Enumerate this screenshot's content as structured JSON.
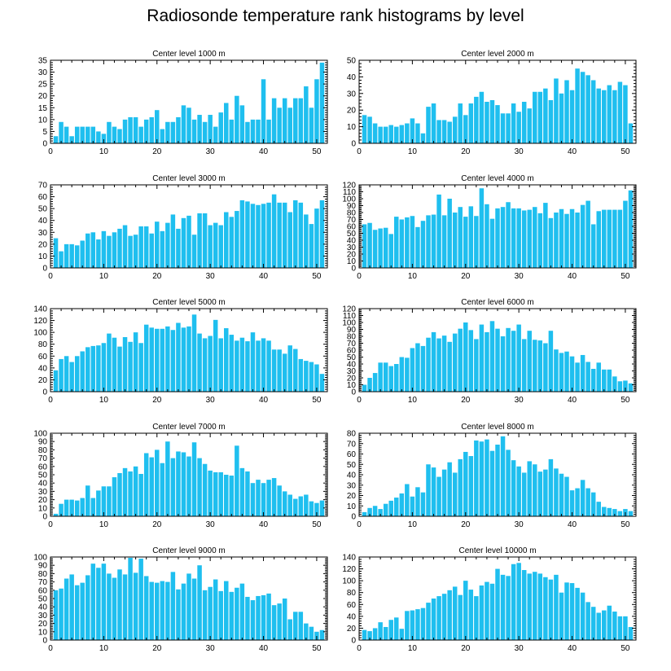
{
  "title": "Radiosonde temperature rank histograms by level",
  "bar_color": "#1fbfef",
  "chart_data": [
    {
      "type": "bar",
      "title": "Center level 1000 m",
      "x": [
        1,
        2,
        3,
        4,
        5,
        6,
        7,
        8,
        9,
        10,
        11,
        12,
        13,
        14,
        15,
        16,
        17,
        18,
        19,
        20,
        21,
        22,
        23,
        24,
        25,
        26,
        27,
        28,
        29,
        30,
        31,
        32,
        33,
        34,
        35,
        36,
        37,
        38,
        39,
        40,
        41,
        42,
        43,
        44,
        45,
        46,
        47,
        48,
        49,
        50,
        51
      ],
      "values": [
        3,
        9,
        7,
        3,
        7,
        7,
        7,
        7,
        5,
        4,
        9,
        7,
        6,
        10,
        11,
        11,
        7,
        10,
        11,
        14,
        6,
        9,
        9,
        11,
        16,
        15,
        10,
        12,
        9,
        12,
        7,
        13,
        17,
        10,
        20,
        16,
        9,
        10,
        10,
        27,
        10,
        19,
        15,
        19,
        15,
        19,
        19,
        24,
        15,
        27,
        34
      ],
      "xlim": [
        0,
        52
      ],
      "ylim": [
        0,
        35
      ],
      "xticks": [
        0,
        10,
        20,
        30,
        40,
        50
      ],
      "yticks": [
        0,
        5,
        10,
        15,
        20,
        25,
        30,
        35
      ]
    },
    {
      "type": "bar",
      "title": "Center level 2000 m",
      "x": [
        1,
        2,
        3,
        4,
        5,
        6,
        7,
        8,
        9,
        10,
        11,
        12,
        13,
        14,
        15,
        16,
        17,
        18,
        19,
        20,
        21,
        22,
        23,
        24,
        25,
        26,
        27,
        28,
        29,
        30,
        31,
        32,
        33,
        34,
        35,
        36,
        37,
        38,
        39,
        40,
        41,
        42,
        43,
        44,
        45,
        46,
        47,
        48,
        49,
        50,
        51
      ],
      "values": [
        17,
        16,
        12,
        10,
        10,
        11,
        10,
        11,
        12,
        15,
        12,
        6,
        22,
        24,
        14,
        14,
        13,
        16,
        24,
        17,
        24,
        28,
        31,
        25,
        26,
        23,
        18,
        18,
        24,
        19,
        25,
        21,
        31,
        31,
        33,
        26,
        39,
        30,
        38,
        32,
        45,
        43,
        41,
        38,
        33,
        32,
        35,
        32,
        37,
        35,
        12
      ],
      "xlim": [
        0,
        52
      ],
      "ylim": [
        0,
        50
      ],
      "xticks": [
        0,
        10,
        20,
        30,
        40,
        50
      ],
      "yticks": [
        0,
        10,
        20,
        30,
        40,
        50
      ]
    },
    {
      "type": "bar",
      "title": "Center level 3000 m",
      "x": [
        1,
        2,
        3,
        4,
        5,
        6,
        7,
        8,
        9,
        10,
        11,
        12,
        13,
        14,
        15,
        16,
        17,
        18,
        19,
        20,
        21,
        22,
        23,
        24,
        25,
        26,
        27,
        28,
        29,
        30,
        31,
        32,
        33,
        34,
        35,
        36,
        37,
        38,
        39,
        40,
        41,
        42,
        43,
        44,
        45,
        46,
        47,
        48,
        49,
        50,
        51
      ],
      "values": [
        25,
        14,
        20,
        20,
        19,
        23,
        29,
        30,
        24,
        31,
        27,
        30,
        33,
        36,
        27,
        28,
        35,
        35,
        29,
        39,
        31,
        38,
        45,
        33,
        42,
        44,
        28,
        46,
        46,
        36,
        38,
        36,
        47,
        43,
        48,
        57,
        56,
        54,
        53,
        54,
        55,
        62,
        55,
        55,
        47,
        57,
        55,
        45,
        37,
        50,
        57
      ],
      "xlim": [
        0,
        52
      ],
      "ylim": [
        0,
        70
      ],
      "xticks": [
        0,
        10,
        20,
        30,
        40,
        50
      ],
      "yticks": [
        0,
        10,
        20,
        30,
        40,
        50,
        60,
        70
      ]
    },
    {
      "type": "bar",
      "title": "Center level 4000 m",
      "x": [
        1,
        2,
        3,
        4,
        5,
        6,
        7,
        8,
        9,
        10,
        11,
        12,
        13,
        14,
        15,
        16,
        17,
        18,
        19,
        20,
        21,
        22,
        23,
        24,
        25,
        26,
        27,
        28,
        29,
        30,
        31,
        32,
        33,
        34,
        35,
        36,
        37,
        38,
        39,
        40,
        41,
        42,
        43,
        44,
        45,
        46,
        47,
        48,
        49,
        50,
        51
      ],
      "values": [
        63,
        65,
        55,
        57,
        58,
        49,
        74,
        70,
        73,
        75,
        59,
        68,
        76,
        77,
        106,
        76,
        100,
        80,
        88,
        74,
        89,
        75,
        115,
        92,
        71,
        86,
        88,
        95,
        86,
        86,
        83,
        84,
        88,
        79,
        94,
        72,
        80,
        85,
        78,
        85,
        80,
        91,
        97,
        63,
        82,
        84,
        84,
        84,
        84,
        97,
        112
      ],
      "xlim": [
        0,
        52
      ],
      "ylim": [
        0,
        120
      ],
      "xticks": [
        0,
        10,
        20,
        30,
        40,
        50
      ],
      "yticks": [
        0,
        10,
        20,
        30,
        40,
        50,
        60,
        70,
        80,
        90,
        100,
        110,
        120
      ]
    },
    {
      "type": "bar",
      "title": "Center level 5000 m",
      "x": [
        1,
        2,
        3,
        4,
        5,
        6,
        7,
        8,
        9,
        10,
        11,
        12,
        13,
        14,
        15,
        16,
        17,
        18,
        19,
        20,
        21,
        22,
        23,
        24,
        25,
        26,
        27,
        28,
        29,
        30,
        31,
        32,
        33,
        34,
        35,
        36,
        37,
        38,
        39,
        40,
        41,
        42,
        43,
        44,
        45,
        46,
        47,
        48,
        49,
        50,
        51
      ],
      "values": [
        36,
        55,
        60,
        50,
        60,
        68,
        75,
        77,
        78,
        82,
        98,
        91,
        76,
        92,
        84,
        100,
        82,
        113,
        108,
        106,
        106,
        110,
        104,
        116,
        108,
        110,
        130,
        98,
        90,
        94,
        121,
        90,
        107,
        96,
        86,
        91,
        85,
        100,
        86,
        90,
        86,
        71,
        71,
        64,
        78,
        72,
        55,
        52,
        50,
        46,
        30
      ],
      "xlim": [
        0,
        52
      ],
      "ylim": [
        0,
        140
      ],
      "xticks": [
        0,
        10,
        20,
        30,
        40,
        50
      ],
      "yticks": [
        0,
        20,
        40,
        60,
        80,
        100,
        120,
        140
      ]
    },
    {
      "type": "bar",
      "title": "Center level 6000 m",
      "x": [
        1,
        2,
        3,
        4,
        5,
        6,
        7,
        8,
        9,
        10,
        11,
        12,
        13,
        14,
        15,
        16,
        17,
        18,
        19,
        20,
        21,
        22,
        23,
        24,
        25,
        26,
        27,
        28,
        29,
        30,
        31,
        32,
        33,
        34,
        35,
        36,
        37,
        38,
        39,
        40,
        41,
        42,
        43,
        44,
        45,
        46,
        47,
        48,
        49,
        50,
        51
      ],
      "values": [
        10,
        20,
        27,
        42,
        42,
        37,
        40,
        50,
        49,
        63,
        70,
        66,
        78,
        86,
        77,
        81,
        72,
        84,
        91,
        100,
        89,
        76,
        97,
        86,
        102,
        91,
        80,
        92,
        88,
        97,
        76,
        88,
        75,
        74,
        70,
        88,
        61,
        56,
        58,
        51,
        42,
        53,
        43,
        33,
        42,
        32,
        32,
        22,
        15,
        16,
        12
      ],
      "xlim": [
        0,
        52
      ],
      "ylim": [
        0,
        120
      ],
      "xticks": [
        0,
        10,
        20,
        30,
        40,
        50
      ],
      "yticks": [
        0,
        10,
        20,
        30,
        40,
        50,
        60,
        70,
        80,
        90,
        100,
        110,
        120
      ]
    },
    {
      "type": "bar",
      "title": "Center level 7000 m",
      "x": [
        1,
        2,
        3,
        4,
        5,
        6,
        7,
        8,
        9,
        10,
        11,
        12,
        13,
        14,
        15,
        16,
        17,
        18,
        19,
        20,
        21,
        22,
        23,
        24,
        25,
        26,
        27,
        28,
        29,
        30,
        31,
        32,
        33,
        34,
        35,
        36,
        37,
        38,
        39,
        40,
        41,
        42,
        43,
        44,
        45,
        46,
        47,
        48,
        49,
        50,
        51
      ],
      "values": [
        3,
        15,
        20,
        20,
        19,
        22,
        37,
        22,
        31,
        36,
        36,
        47,
        52,
        58,
        54,
        60,
        51,
        76,
        71,
        80,
        64,
        90,
        70,
        78,
        77,
        72,
        89,
        70,
        63,
        55,
        53,
        53,
        50,
        49,
        85,
        58,
        54,
        40,
        44,
        40,
        44,
        46,
        37,
        30,
        26,
        21,
        24,
        26,
        18,
        16,
        19
      ],
      "xlim": [
        0,
        52
      ],
      "ylim": [
        0,
        100
      ],
      "xticks": [
        0,
        10,
        20,
        30,
        40,
        50
      ],
      "yticks": [
        0,
        10,
        20,
        30,
        40,
        50,
        60,
        70,
        80,
        90,
        100
      ]
    },
    {
      "type": "bar",
      "title": "Center level 8000 m",
      "x": [
        1,
        2,
        3,
        4,
        5,
        6,
        7,
        8,
        9,
        10,
        11,
        12,
        13,
        14,
        15,
        16,
        17,
        18,
        19,
        20,
        21,
        22,
        23,
        24,
        25,
        26,
        27,
        28,
        29,
        30,
        31,
        32,
        33,
        34,
        35,
        36,
        37,
        38,
        39,
        40,
        41,
        42,
        43,
        44,
        45,
        46,
        47,
        48,
        49,
        50,
        51
      ],
      "values": [
        4,
        8,
        10,
        7,
        12,
        15,
        18,
        22,
        31,
        19,
        28,
        23,
        50,
        47,
        38,
        45,
        52,
        42,
        55,
        62,
        58,
        73,
        72,
        74,
        63,
        69,
        77,
        64,
        54,
        48,
        42,
        53,
        50,
        43,
        45,
        55,
        46,
        41,
        38,
        25,
        27,
        35,
        27,
        23,
        14,
        9,
        8,
        7,
        5,
        7,
        5
      ],
      "xlim": [
        0,
        52
      ],
      "ylim": [
        0,
        80
      ],
      "xticks": [
        0,
        10,
        20,
        30,
        40,
        50
      ],
      "yticks": [
        0,
        10,
        20,
        30,
        40,
        50,
        60,
        70,
        80
      ]
    },
    {
      "type": "bar",
      "title": "Center level 9000 m",
      "x": [
        1,
        2,
        3,
        4,
        5,
        6,
        7,
        8,
        9,
        10,
        11,
        12,
        13,
        14,
        15,
        16,
        17,
        18,
        19,
        20,
        21,
        22,
        23,
        24,
        25,
        26,
        27,
        28,
        29,
        30,
        31,
        32,
        33,
        34,
        35,
        36,
        37,
        38,
        39,
        40,
        41,
        42,
        43,
        44,
        45,
        46,
        47,
        48,
        49,
        50,
        51
      ],
      "values": [
        60,
        62,
        74,
        79,
        66,
        69,
        78,
        92,
        87,
        92,
        80,
        75,
        85,
        79,
        99,
        81,
        98,
        77,
        70,
        69,
        71,
        70,
        82,
        61,
        68,
        80,
        74,
        90,
        60,
        64,
        73,
        59,
        71,
        58,
        63,
        68,
        52,
        48,
        53,
        54,
        56,
        42,
        44,
        50,
        25,
        34,
        34,
        20,
        16,
        10,
        12
      ],
      "xlim": [
        0,
        52
      ],
      "ylim": [
        0,
        100
      ],
      "xticks": [
        0,
        10,
        20,
        30,
        40,
        50
      ],
      "yticks": [
        0,
        10,
        20,
        30,
        40,
        50,
        60,
        70,
        80,
        90,
        100
      ]
    },
    {
      "type": "bar",
      "title": "Center level 10000 m",
      "x": [
        1,
        2,
        3,
        4,
        5,
        6,
        7,
        8,
        9,
        10,
        11,
        12,
        13,
        14,
        15,
        16,
        17,
        18,
        19,
        20,
        21,
        22,
        23,
        24,
        25,
        26,
        27,
        28,
        29,
        30,
        31,
        32,
        33,
        34,
        35,
        36,
        37,
        38,
        39,
        40,
        41,
        42,
        43,
        44,
        45,
        46,
        47,
        48,
        49,
        50,
        51
      ],
      "values": [
        17,
        15,
        20,
        30,
        22,
        34,
        38,
        19,
        49,
        50,
        52,
        54,
        63,
        70,
        74,
        78,
        84,
        90,
        76,
        100,
        85,
        74,
        92,
        98,
        95,
        120,
        110,
        108,
        128,
        130,
        118,
        112,
        115,
        112,
        106,
        102,
        110,
        80,
        97,
        96,
        88,
        80,
        64,
        56,
        46,
        50,
        58,
        48,
        40,
        40,
        22
      ],
      "xlim": [
        0,
        52
      ],
      "ylim": [
        0,
        140
      ],
      "xticks": [
        0,
        10,
        20,
        30,
        40,
        50
      ],
      "yticks": [
        0,
        20,
        40,
        60,
        80,
        100,
        120,
        140
      ]
    }
  ]
}
